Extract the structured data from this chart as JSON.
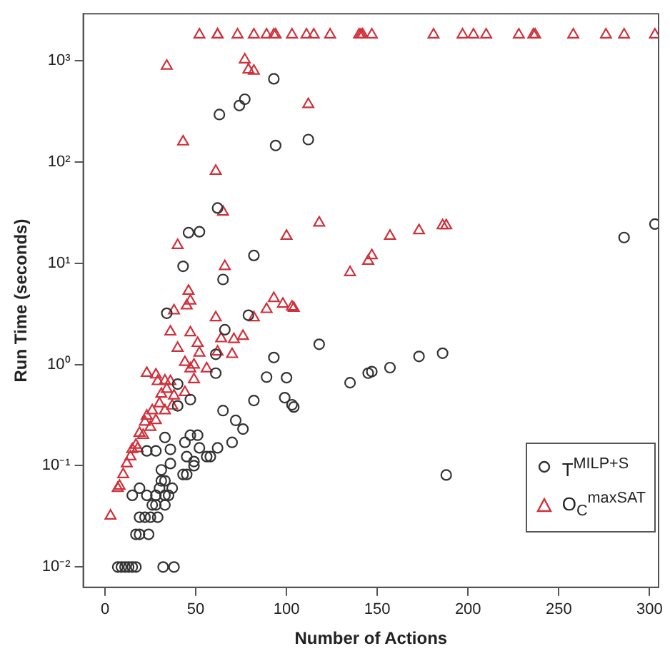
{
  "chart_data": {
    "type": "scatter",
    "xlabel": "Number of Actions",
    "ylabel": "Run Time (seconds)",
    "log": "y",
    "grid": false,
    "legend": "bottom right",
    "xlim": [
      -12,
      305
    ],
    "xticks": [
      0,
      50,
      100,
      150,
      200,
      250,
      300
    ],
    "ylim": [
      0.0063,
      2900
    ],
    "yticks": [
      {
        "value": 0.01,
        "label": "10⁻²"
      },
      {
        "value": 0.1,
        "label": "10⁻¹"
      },
      {
        "value": 1,
        "label": "10⁰"
      },
      {
        "value": 10,
        "label": "10¹"
      },
      {
        "value": 100,
        "label": "10²"
      },
      {
        "value": 1000,
        "label": "10³"
      }
    ],
    "series": [
      {
        "name": "T$^{MILP+S}$",
        "color": "#333333",
        "marker": "circle",
        "x": [
          93,
          77,
          74,
          63,
          94,
          112,
          62,
          46,
          52,
          82,
          43,
          65,
          286,
          303,
          34,
          79,
          66,
          118,
          61,
          93,
          135,
          89,
          100,
          61,
          40,
          47,
          40,
          82,
          99,
          103,
          104,
          65,
          72,
          76,
          47,
          51,
          44,
          33,
          70,
          62,
          52,
          28,
          23,
          36,
          45,
          56,
          58,
          49,
          49,
          36,
          31,
          43,
          45,
          33,
          31,
          30,
          37,
          19,
          33,
          35,
          23,
          28,
          15,
          26,
          28,
          33,
          19,
          22,
          25,
          29,
          17,
          19,
          24,
          7,
          9,
          11,
          13,
          15,
          17,
          32,
          38,
          145,
          147,
          157,
          173,
          186,
          188
        ],
        "values": [
          660,
          415,
          360,
          293,
          145,
          166,
          35,
          20,
          20.4,
          11.9,
          9.3,
          6.9,
          17.9,
          24.3,
          3.2,
          3.06,
          2.2,
          1.58,
          1.26,
          1.17,
          0.66,
          0.75,
          0.74,
          0.82,
          0.64,
          0.45,
          0.39,
          0.44,
          0.47,
          0.4,
          0.38,
          0.35,
          0.28,
          0.23,
          0.2,
          0.2,
          0.17,
          0.19,
          0.17,
          0.15,
          0.15,
          0.14,
          0.14,
          0.145,
          0.123,
          0.123,
          0.123,
          0.11,
          0.1,
          0.105,
          0.091,
          0.082,
          0.082,
          0.071,
          0.071,
          0.06,
          0.06,
          0.06,
          0.051,
          0.051,
          0.051,
          0.051,
          0.051,
          0.041,
          0.041,
          0.041,
          0.031,
          0.031,
          0.031,
          0.031,
          0.021,
          0.021,
          0.021,
          0.01,
          0.01,
          0.01,
          0.01,
          0.01,
          0.01,
          0.01,
          0.01,
          0.82,
          0.85,
          0.93,
          1.2,
          1.29,
          0.081
        ]
      },
      {
        "name": "O$_{C}$$^{maxSAT}$",
        "color": "#d0303a",
        "marker": "triangle",
        "x": [
          52,
          62,
          62,
          73,
          82,
          89,
          93,
          94,
          103,
          111,
          115,
          124,
          140,
          141,
          142,
          147,
          181,
          197,
          203,
          210,
          228,
          236,
          237,
          258,
          276,
          286,
          303,
          34,
          77,
          79,
          82,
          112,
          43,
          61,
          65,
          118,
          100,
          40,
          66,
          135,
          46,
          145,
          147,
          157,
          173,
          186,
          188,
          47,
          45,
          38,
          93,
          89,
          98,
          103,
          104,
          61,
          82,
          36,
          47,
          64,
          76,
          71,
          51,
          40,
          52,
          62,
          70,
          44,
          49,
          56,
          47,
          49,
          23,
          28,
          29,
          33,
          36,
          34,
          31,
          44,
          38,
          30,
          37,
          33,
          26,
          23,
          28,
          22,
          25,
          19,
          21,
          17,
          15,
          18,
          14,
          12,
          10,
          7,
          8,
          3
        ],
        "values": [
          1800,
          1800,
          1800,
          1800,
          1800,
          1800,
          1800,
          1800,
          1800,
          1800,
          1800,
          1800,
          1800,
          1800,
          1800,
          1800,
          1800,
          1800,
          1800,
          1800,
          1800,
          1800,
          1800,
          1800,
          1800,
          1800,
          1800,
          885,
          1020,
          810,
          790,
          370,
          158,
          81,
          32,
          25,
          18.5,
          15,
          9.3,
          8.1,
          5.3,
          10.5,
          11.9,
          18.5,
          21,
          23.5,
          23.5,
          4.25,
          3.8,
          3.4,
          4.5,
          3.5,
          3.95,
          3.7,
          3.6,
          2.9,
          2.9,
          2.1,
          2.06,
          1.8,
          1.9,
          1.77,
          1.62,
          1.45,
          1.3,
          1.33,
          1.26,
          1.05,
          0.99,
          0.91,
          0.91,
          0.71,
          0.82,
          0.79,
          0.68,
          0.69,
          0.68,
          0.57,
          0.51,
          0.53,
          0.49,
          0.41,
          0.39,
          0.35,
          0.35,
          0.31,
          0.28,
          0.27,
          0.24,
          0.21,
          0.2,
          0.16,
          0.145,
          0.148,
          0.123,
          0.105,
          0.082,
          0.06,
          0.063,
          0.032
        ]
      }
    ]
  }
}
